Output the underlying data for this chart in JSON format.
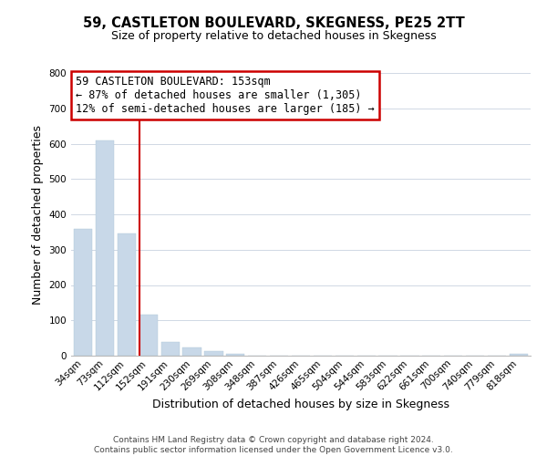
{
  "title": "59, CASTLETON BOULEVARD, SKEGNESS, PE25 2TT",
  "subtitle": "Size of property relative to detached houses in Skegness",
  "xlabel": "Distribution of detached houses by size in Skegness",
  "ylabel": "Number of detached properties",
  "bar_labels": [
    "34sqm",
    "73sqm",
    "112sqm",
    "152sqm",
    "191sqm",
    "230sqm",
    "269sqm",
    "308sqm",
    "348sqm",
    "387sqm",
    "426sqm",
    "465sqm",
    "504sqm",
    "544sqm",
    "583sqm",
    "622sqm",
    "661sqm",
    "700sqm",
    "740sqm",
    "779sqm",
    "818sqm"
  ],
  "bar_values": [
    360,
    610,
    345,
    115,
    40,
    22,
    12,
    5,
    0,
    0,
    0,
    0,
    0,
    0,
    0,
    0,
    0,
    0,
    0,
    0,
    5
  ],
  "bar_color": "#c8d8e8",
  "red_line_bar_index": 3,
  "annotation_title": "59 CASTLETON BOULEVARD: 153sqm",
  "annotation_line1": "← 87% of detached houses are smaller (1,305)",
  "annotation_line2": "12% of semi-detached houses are larger (185) →",
  "annotation_box_color": "#ffffff",
  "annotation_box_edgecolor": "#cc0000",
  "ylim": [
    0,
    800
  ],
  "yticks": [
    0,
    100,
    200,
    300,
    400,
    500,
    600,
    700,
    800
  ],
  "footer_line1": "Contains HM Land Registry data © Crown copyright and database right 2024.",
  "footer_line2": "Contains public sector information licensed under the Open Government Licence v3.0.",
  "background_color": "#ffffff",
  "grid_color": "#d0d8e4",
  "title_fontsize": 10.5,
  "subtitle_fontsize": 9,
  "xlabel_fontsize": 9,
  "ylabel_fontsize": 9,
  "tick_fontsize": 7.5,
  "footer_fontsize": 6.5,
  "annotation_fontsize": 8.5
}
